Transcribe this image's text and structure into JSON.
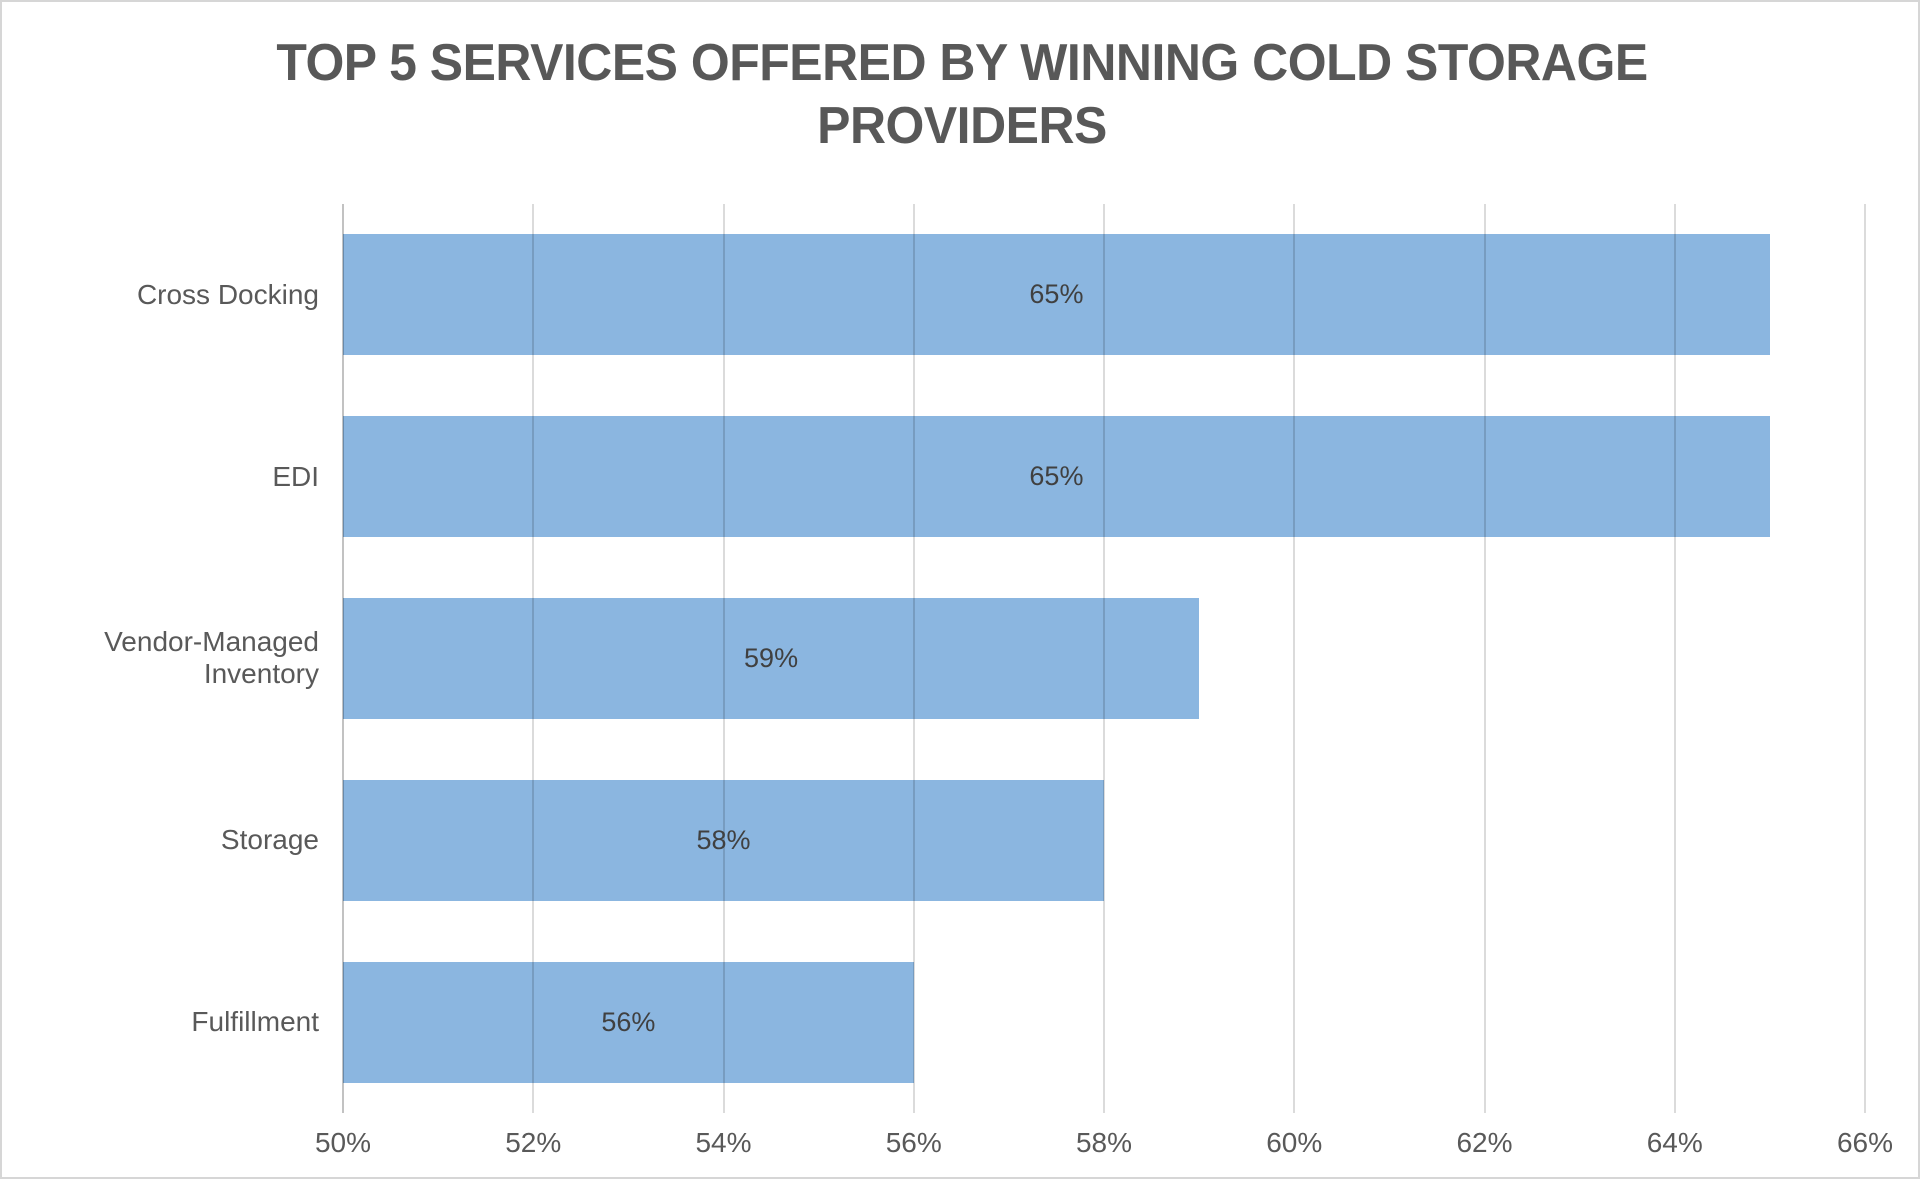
{
  "chart_title": "TOP 5 SERVICES OFFERED BY WINNING COLD STORAGE PROVIDERS",
  "chart_data": {
    "type": "bar",
    "orientation": "horizontal",
    "title": "TOP 5 SERVICES OFFERED BY WINNING COLD STORAGE PROVIDERS",
    "categories": [
      "Cross Docking",
      "EDI",
      "Vendor-Managed Inventory",
      "Storage",
      "Fulfillment"
    ],
    "values": [
      65,
      65,
      59,
      58,
      56
    ],
    "data_labels": [
      "65%",
      "65%",
      "59%",
      "58%",
      "56%"
    ],
    "data_label_position": "center",
    "xlabel": "",
    "ylabel": "",
    "xlim": [
      50,
      66
    ],
    "x_tick_step": 2,
    "x_tick_labels": [
      "50%",
      "52%",
      "54%",
      "56%",
      "58%",
      "60%",
      "62%",
      "64%",
      "66%"
    ],
    "grid": true,
    "gridlines_over_bars": true,
    "legend": false,
    "gap_ratio": 0.5
  },
  "colors": {
    "bar_fill": "#8BB6E0",
    "title_text": "#585858",
    "axis_text": "#595959",
    "data_label_text": "#404040",
    "gridline": "#D9D9D9",
    "axis_line": "#C3C3C3",
    "canvas_border": "#D6D6D6",
    "background": "#FFFFFF"
  }
}
